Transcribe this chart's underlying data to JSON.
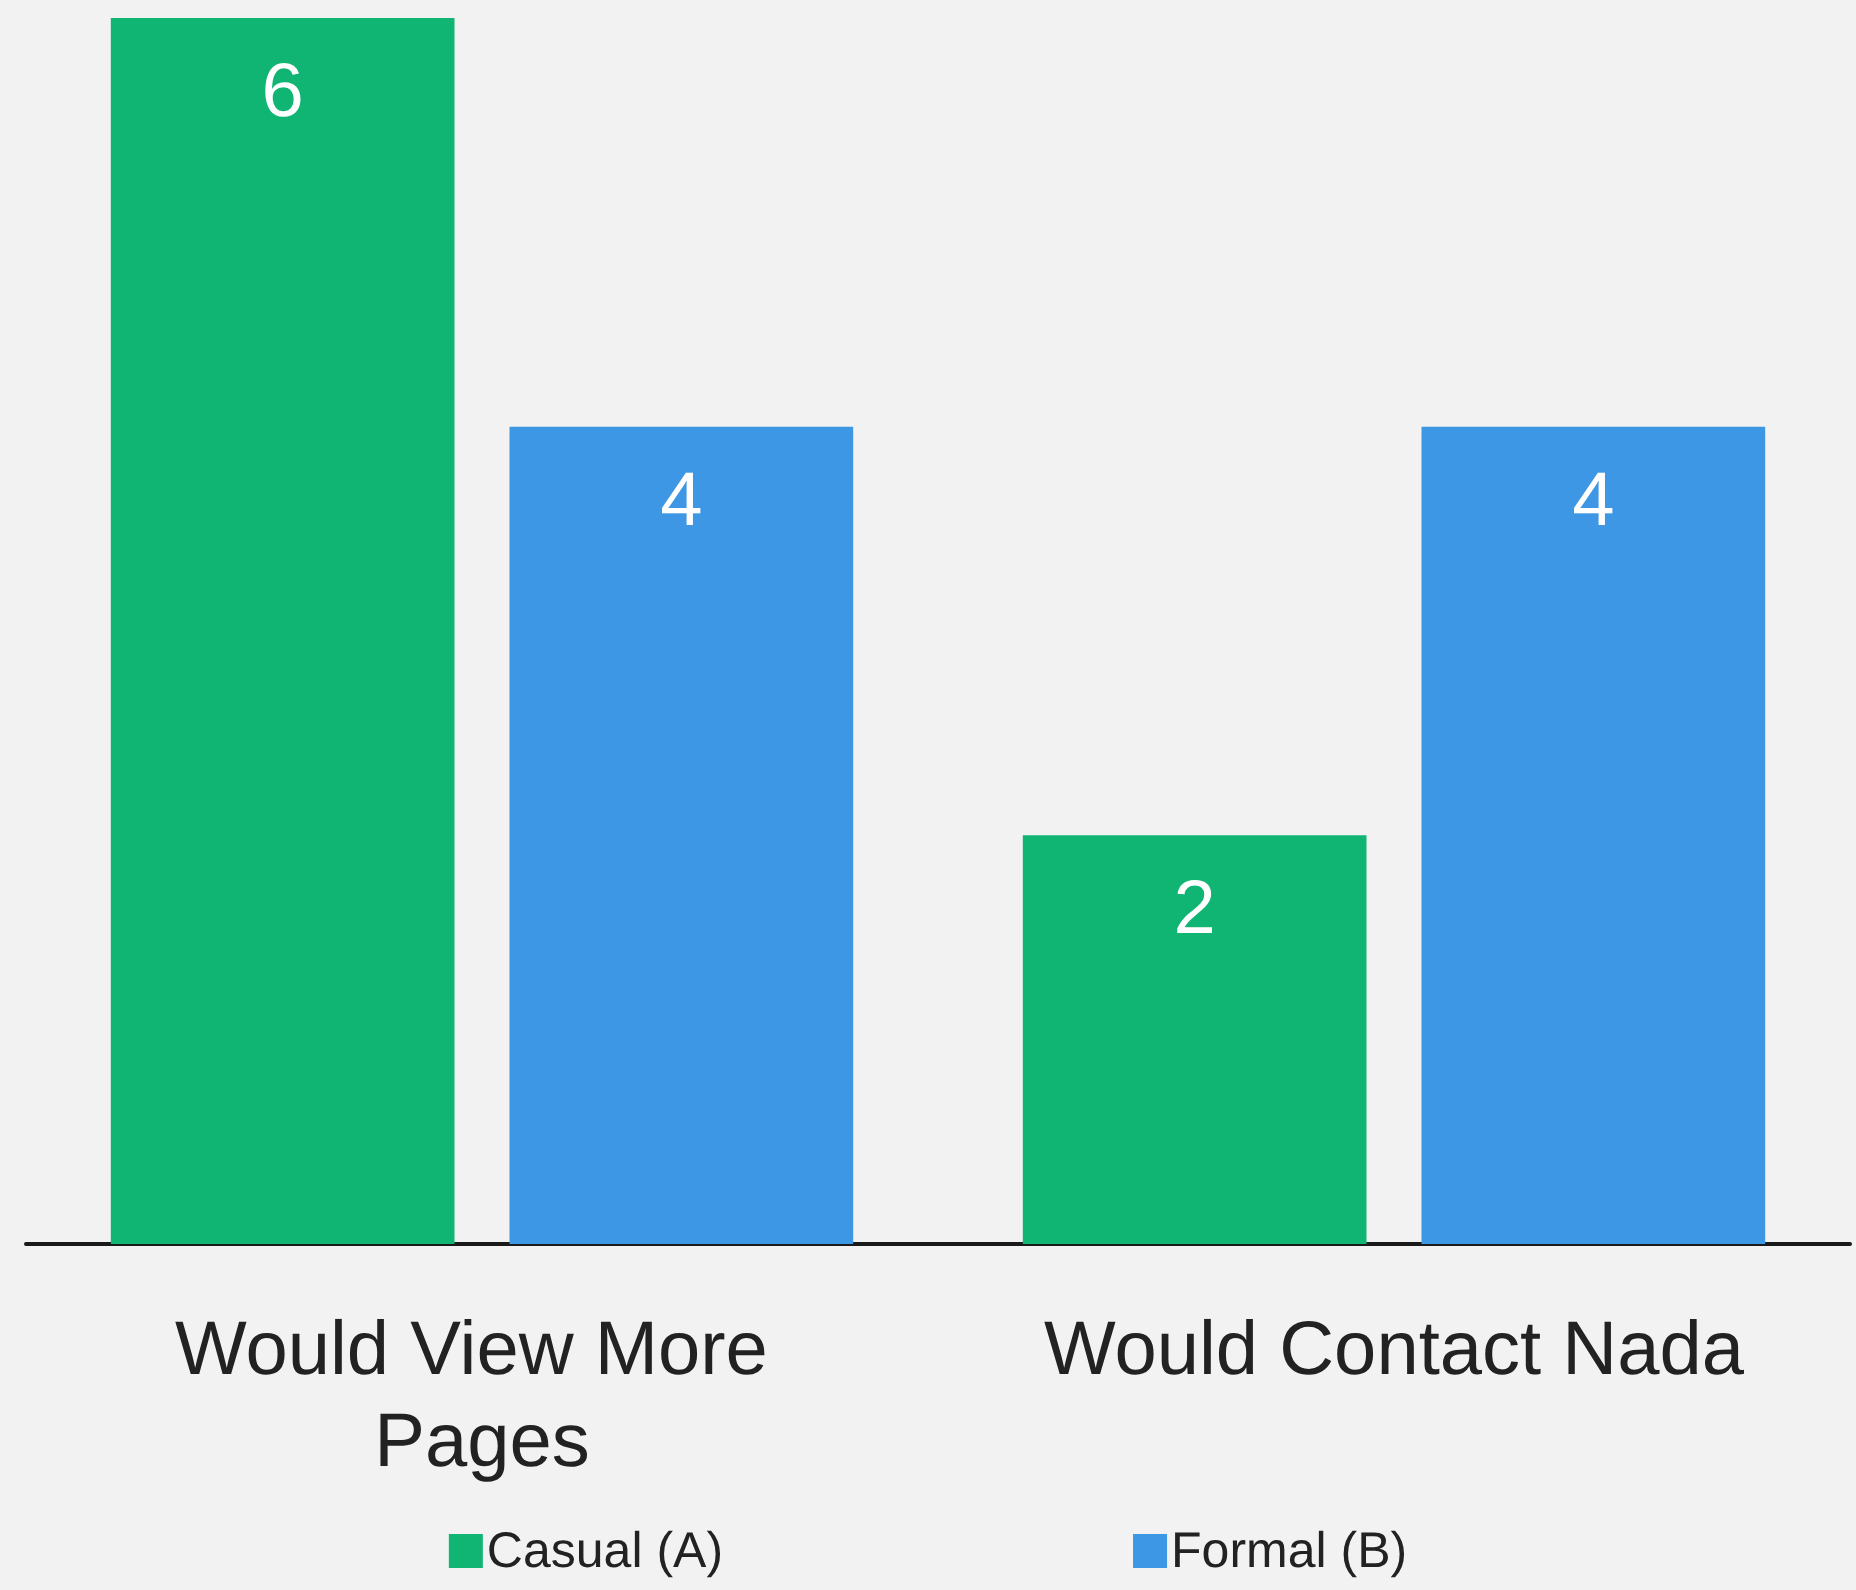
{
  "chart_data": {
    "type": "bar",
    "categories": [
      "Would View More Pages",
      "Would Contact Nada"
    ],
    "series": [
      {
        "name": "Casual (A)",
        "color": "#11b573",
        "values": [
          6,
          2
        ]
      },
      {
        "name": "Formal (B)",
        "color": "#3d97e4",
        "values": [
          4,
          4
        ]
      }
    ],
    "data_labels": true,
    "legend": "bottom"
  }
}
